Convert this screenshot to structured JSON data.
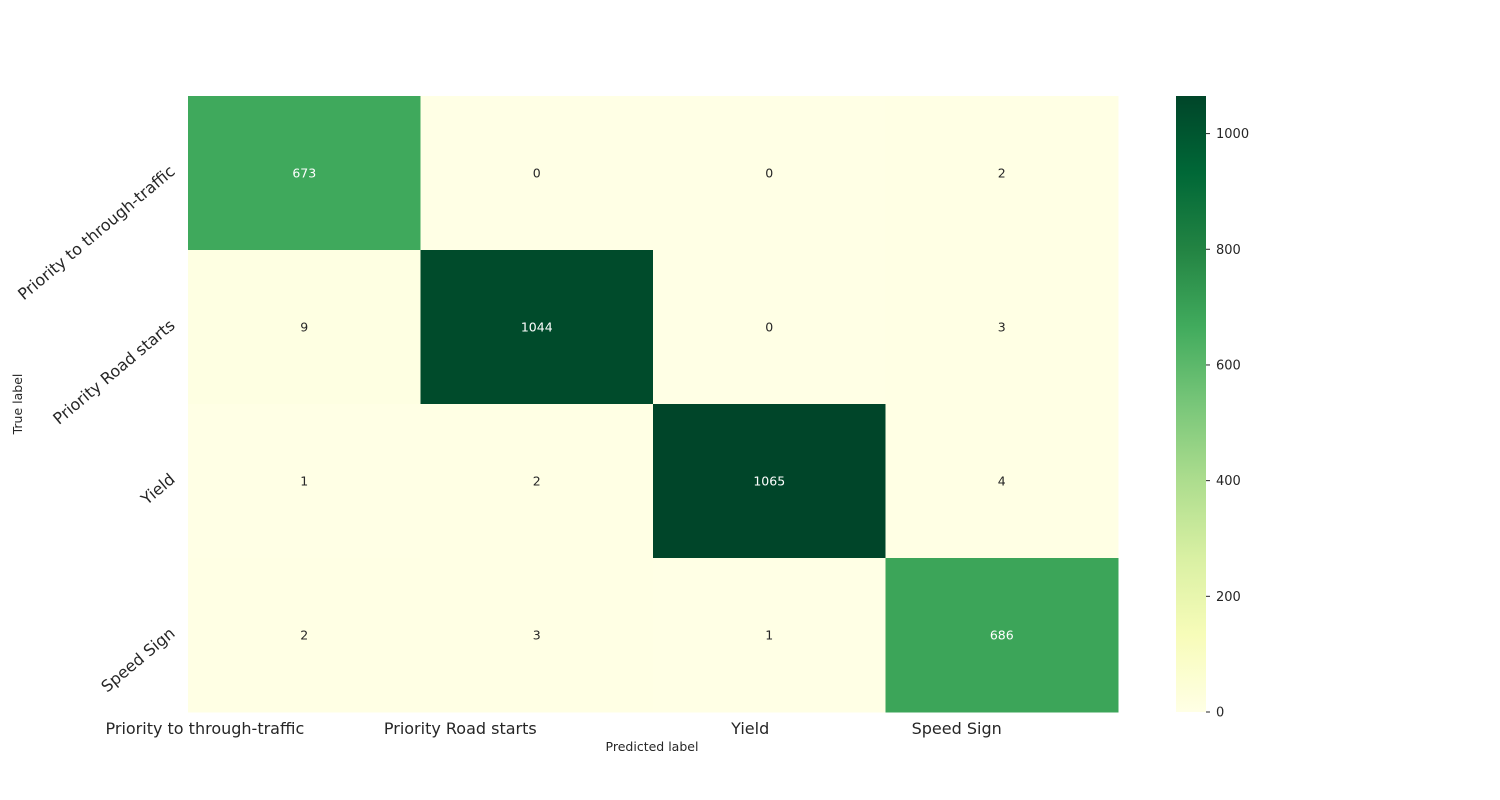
{
  "chart_data": {
    "type": "heatmap",
    "x_categories": [
      "Priority to through-traffic",
      "Priority Road starts",
      "Yield",
      "Speed Sign"
    ],
    "y_categories": [
      "Priority to through-traffic",
      "Priority Road starts",
      "Yield",
      "Speed Sign"
    ],
    "values": [
      [
        673,
        0,
        0,
        2
      ],
      [
        9,
        1044,
        0,
        3
      ],
      [
        1,
        2,
        1065,
        4
      ],
      [
        2,
        3,
        1,
        686
      ]
    ],
    "xlabel": "Predicted label",
    "ylabel": "True label",
    "colormap": "YlGn",
    "vmin": 0,
    "vmax": 1065,
    "colorbar_ticks": [
      0,
      200,
      400,
      600,
      800,
      1000
    ],
    "text_color_light": "#ffffff",
    "text_color_dark": "#262626"
  }
}
